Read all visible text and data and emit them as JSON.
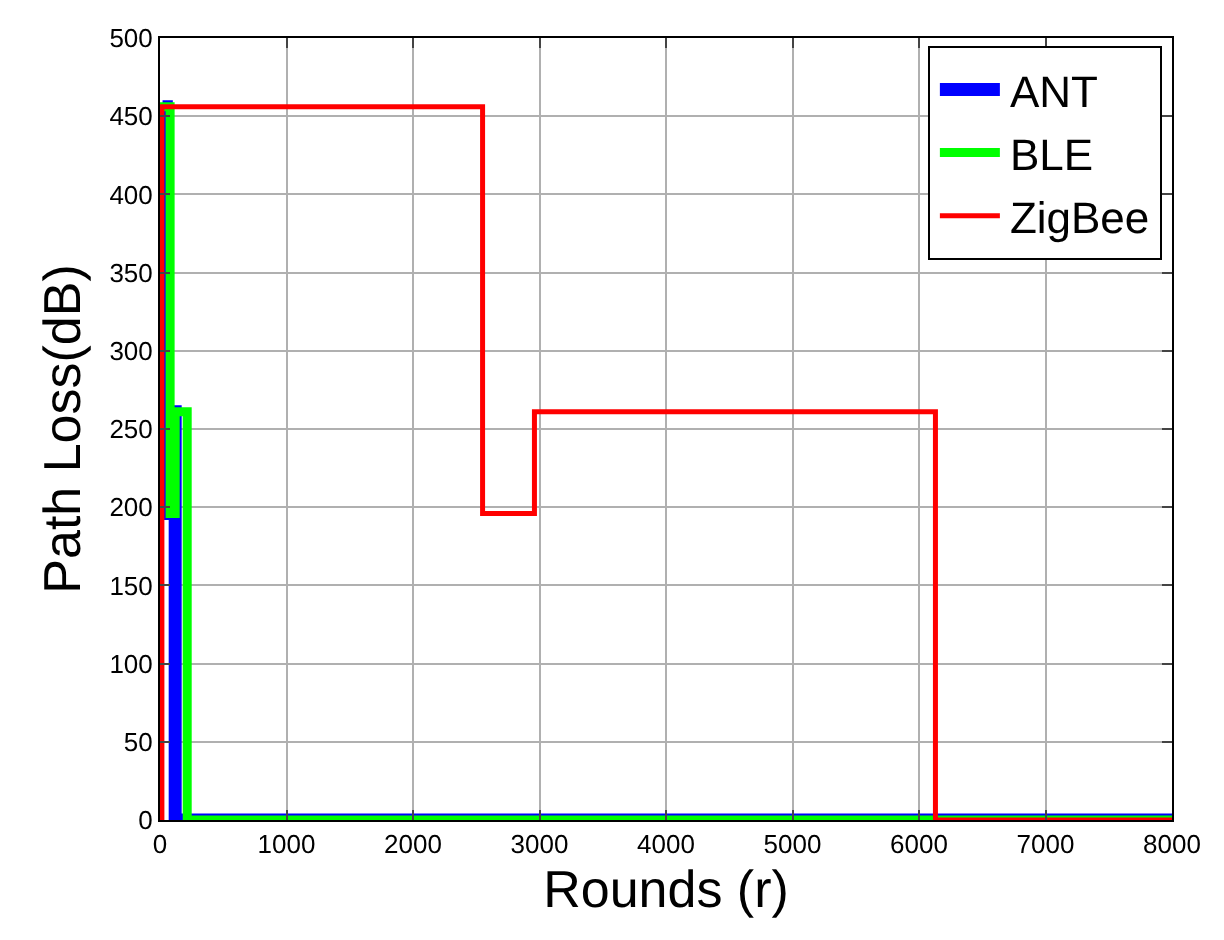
{
  "chart_data": {
    "type": "step",
    "xlabel": "Rounds (r)",
    "ylabel": "Path Loss(dB)",
    "xlim": [
      0,
      8000
    ],
    "xticks": [
      0,
      1000,
      2000,
      3000,
      4000,
      5000,
      6000,
      7000,
      8000
    ],
    "ylim": [
      0,
      500
    ],
    "yticks": [
      0,
      50,
      100,
      150,
      200,
      250,
      300,
      350,
      400,
      450,
      500
    ],
    "grid": true,
    "legend": "top right",
    "marker": "none",
    "line_style": "solid",
    "series": [
      {
        "name": "ANT",
        "color": "#0000ff",
        "x": [
          20,
          50,
          100,
          120,
          8000
        ],
        "values": [
          456,
          196,
          261,
          0,
          0
        ]
      },
      {
        "name": "BLE",
        "color": "#00ff00",
        "x": [
          0,
          80,
          120,
          215,
          8000
        ],
        "values": [
          456,
          196,
          261,
          0,
          0
        ]
      },
      {
        "name": "ZigBee",
        "color": "#ff0000",
        "x": [
          0,
          15,
          2550,
          2960,
          6130,
          8000
        ],
        "values": [
          0,
          456,
          196,
          261,
          0,
          0
        ]
      }
    ]
  }
}
